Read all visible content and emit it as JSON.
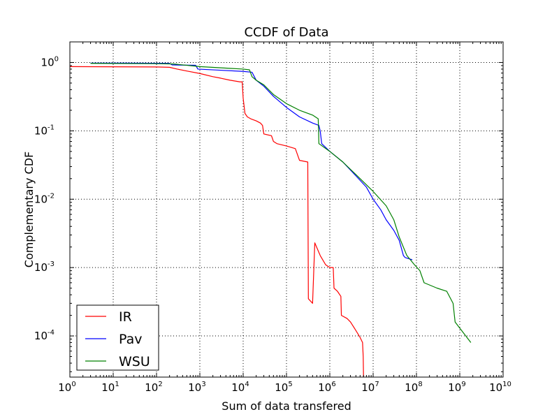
{
  "chart_data": {
    "type": "line",
    "title": "CCDF of Data",
    "xlabel": "Sum of data transfered",
    "ylabel": "Complementary CDF",
    "xscale": "log",
    "yscale": "log",
    "xlim": [
      1,
      10000000000
    ],
    "ylim": [
      2.5e-05,
      2
    ],
    "grid": true,
    "legend_position": "lower-left",
    "x_ticks": [
      {
        "value": 1,
        "base": "10",
        "exp": "0"
      },
      {
        "value": 10,
        "base": "10",
        "exp": "1"
      },
      {
        "value": 100,
        "base": "10",
        "exp": "2"
      },
      {
        "value": 1000,
        "base": "10",
        "exp": "3"
      },
      {
        "value": 10000,
        "base": "10",
        "exp": "4"
      },
      {
        "value": 100000,
        "base": "10",
        "exp": "5"
      },
      {
        "value": 1000000,
        "base": "10",
        "exp": "6"
      },
      {
        "value": 10000000,
        "base": "10",
        "exp": "7"
      },
      {
        "value": 100000000,
        "base": "10",
        "exp": "8"
      },
      {
        "value": 1000000000,
        "base": "10",
        "exp": "9"
      },
      {
        "value": 10000000000,
        "base": "10",
        "exp": "10"
      }
    ],
    "y_ticks": [
      {
        "value": 1,
        "base": "10",
        "exp": "0"
      },
      {
        "value": 0.1,
        "base": "10",
        "exp": "-1"
      },
      {
        "value": 0.01,
        "base": "10",
        "exp": "-2"
      },
      {
        "value": 0.001,
        "base": "10",
        "exp": "-3"
      },
      {
        "value": 0.0001,
        "base": "10",
        "exp": "-4"
      }
    ],
    "series": [
      {
        "name": "IR",
        "color": "#ff0000",
        "points": [
          [
            1,
            0.87
          ],
          [
            100,
            0.86
          ],
          [
            200,
            0.85
          ],
          [
            300,
            0.8
          ],
          [
            500,
            0.75
          ],
          [
            1000,
            0.69
          ],
          [
            2000,
            0.62
          ],
          [
            3000,
            0.59
          ],
          [
            5000,
            0.55
          ],
          [
            8500,
            0.52
          ],
          [
            9500,
            0.52
          ],
          [
            10000,
            0.3
          ],
          [
            11000,
            0.18
          ],
          [
            12500,
            0.16
          ],
          [
            15000,
            0.15
          ],
          [
            20000,
            0.14
          ],
          [
            25000,
            0.13
          ],
          [
            28000,
            0.12
          ],
          [
            30000,
            0.09
          ],
          [
            45000,
            0.085
          ],
          [
            50000,
            0.07
          ],
          [
            60000,
            0.065
          ],
          [
            100000,
            0.06
          ],
          [
            160000,
            0.055
          ],
          [
            200000,
            0.037
          ],
          [
            310000,
            0.035
          ],
          [
            320000,
            0.00035
          ],
          [
            400000,
            0.0003
          ],
          [
            450000,
            0.0023
          ],
          [
            600000,
            0.0015
          ],
          [
            800000,
            0.0011
          ],
          [
            1000000,
            0.001
          ],
          [
            1200000,
            0.001
          ],
          [
            1250000,
            0.0005
          ],
          [
            1500000,
            0.00045
          ],
          [
            1700000,
            0.0004
          ],
          [
            1800000,
            0.00038
          ],
          [
            1850000,
            0.0002
          ],
          [
            2500000,
            0.00018
          ],
          [
            3000000,
            0.00016
          ],
          [
            4000000,
            0.00012
          ],
          [
            5000000,
            9.5e-05
          ],
          [
            5700000,
            8e-05
          ],
          [
            5900000,
            5e-05
          ],
          [
            6000000,
            2.5e-05
          ]
        ]
      },
      {
        "name": "Pav",
        "color": "#0000ff",
        "points": [
          [
            3,
            0.98
          ],
          [
            20,
            0.98
          ],
          [
            200,
            0.97
          ],
          [
            230,
            0.92
          ],
          [
            800,
            0.91
          ],
          [
            900,
            0.8
          ],
          [
            3000,
            0.77
          ],
          [
            10000,
            0.74
          ],
          [
            16000,
            0.72
          ],
          [
            20000,
            0.55
          ],
          [
            30000,
            0.45
          ],
          [
            50000,
            0.32
          ],
          [
            100000,
            0.22
          ],
          [
            200000,
            0.16
          ],
          [
            400000,
            0.13
          ],
          [
            560000,
            0.12
          ],
          [
            600000,
            0.1
          ],
          [
            650000,
            0.065
          ],
          [
            1000000,
            0.05
          ],
          [
            2000000,
            0.035
          ],
          [
            4000000,
            0.022
          ],
          [
            7000000,
            0.015
          ],
          [
            10000000,
            0.01
          ],
          [
            15000000,
            0.007
          ],
          [
            20000000,
            0.005
          ],
          [
            30000000,
            0.0035
          ],
          [
            40000000,
            0.0025
          ],
          [
            50000000,
            0.0015
          ],
          [
            55000000,
            0.0014
          ],
          [
            80000000,
            0.0013
          ]
        ]
      },
      {
        "name": "WSU",
        "color": "#008000",
        "points": [
          [
            3,
            0.97
          ],
          [
            100,
            0.96
          ],
          [
            250,
            0.95
          ],
          [
            1000,
            0.87
          ],
          [
            5000,
            0.82
          ],
          [
            10000,
            0.8
          ],
          [
            14000,
            0.78
          ],
          [
            16000,
            0.62
          ],
          [
            20000,
            0.55
          ],
          [
            30000,
            0.47
          ],
          [
            50000,
            0.34
          ],
          [
            100000,
            0.25
          ],
          [
            200000,
            0.2
          ],
          [
            400000,
            0.17
          ],
          [
            540000,
            0.15
          ],
          [
            550000,
            0.1
          ],
          [
            560000,
            0.065
          ],
          [
            1000000,
            0.05
          ],
          [
            2000000,
            0.035
          ],
          [
            5000000,
            0.02
          ],
          [
            10000000,
            0.013
          ],
          [
            20000000,
            0.008
          ],
          [
            30000000,
            0.005
          ],
          [
            40000000,
            0.0028
          ],
          [
            60000000,
            0.0015
          ],
          [
            90000000,
            0.0011
          ],
          [
            120000000,
            0.0009
          ],
          [
            150000000,
            0.0006
          ],
          [
            300000000,
            0.0005
          ],
          [
            500000000,
            0.00045
          ],
          [
            700000000,
            0.0003
          ],
          [
            780000000,
            0.00016
          ],
          [
            1000000000,
            0.00013
          ],
          [
            1800000000,
            8e-05
          ]
        ]
      }
    ]
  }
}
